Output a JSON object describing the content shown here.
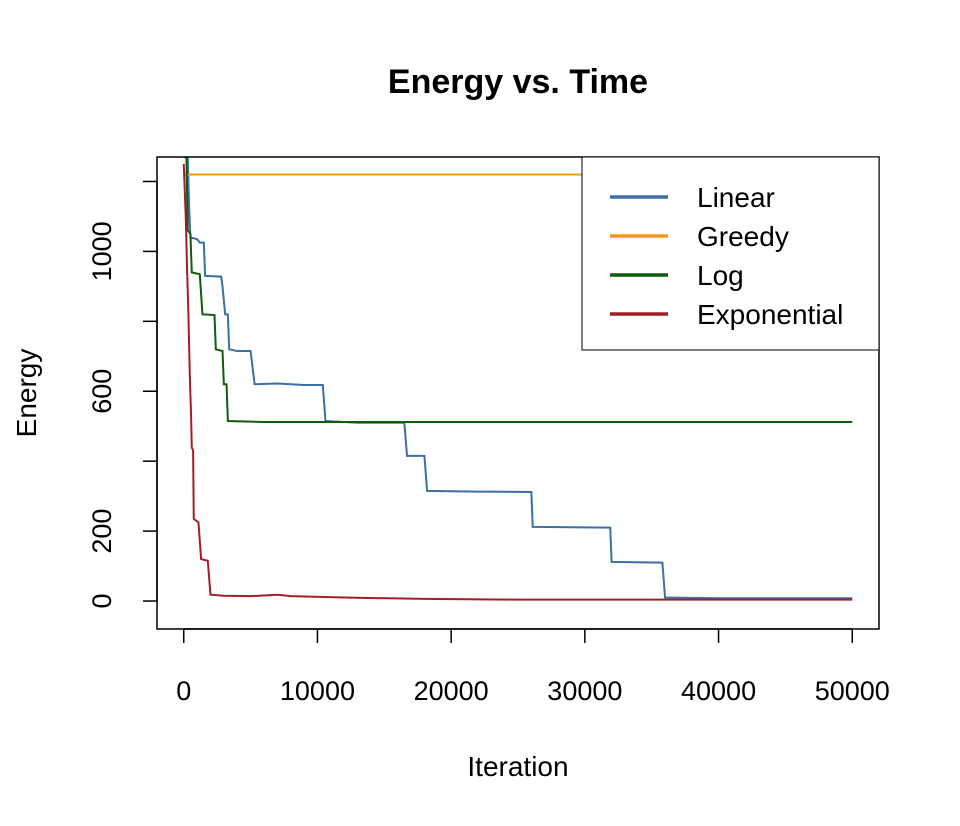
{
  "chart_data": {
    "type": "line",
    "title": "Energy vs. Time",
    "xlabel": "Iteration",
    "ylabel": "Energy",
    "xlim": [
      -2000,
      52000
    ],
    "ylim": [
      -80,
      1270
    ],
    "x_ticks": [
      0,
      10000,
      20000,
      30000,
      40000,
      50000
    ],
    "y_ticks": [
      0,
      200,
      400,
      600,
      800,
      1000,
      1200
    ],
    "y_tick_labels": [
      "0",
      "200",
      "",
      "600",
      "",
      "1000",
      ""
    ],
    "legend_position": "top-right",
    "grid": false,
    "series": [
      {
        "name": "Linear",
        "color": "#3b6fa6",
        "points": [
          [
            0,
            1270
          ],
          [
            300,
            1270
          ],
          [
            400,
            1130
          ],
          [
            500,
            1040
          ],
          [
            1000,
            1035
          ],
          [
            1200,
            1025
          ],
          [
            1500,
            1025
          ],
          [
            1600,
            930
          ],
          [
            2800,
            928
          ],
          [
            2900,
            900
          ],
          [
            3100,
            820
          ],
          [
            3300,
            820
          ],
          [
            3400,
            720
          ],
          [
            4000,
            715
          ],
          [
            5000,
            715
          ],
          [
            5300,
            620
          ],
          [
            7000,
            622
          ],
          [
            9000,
            618
          ],
          [
            10400,
            618
          ],
          [
            10600,
            515
          ],
          [
            13000,
            510
          ],
          [
            16500,
            510
          ],
          [
            16700,
            415
          ],
          [
            18000,
            415
          ],
          [
            18200,
            315
          ],
          [
            22000,
            313
          ],
          [
            26000,
            312
          ],
          [
            26100,
            212
          ],
          [
            31900,
            210
          ],
          [
            32000,
            112
          ],
          [
            35800,
            110
          ],
          [
            36000,
            10
          ],
          [
            40000,
            8
          ],
          [
            50000,
            8
          ]
        ]
      },
      {
        "name": "Greedy",
        "color": "#f7951e",
        "points": [
          [
            0,
            1220
          ],
          [
            30000,
            1220
          ]
        ]
      },
      {
        "name": "Log",
        "color": "#0e5a0e",
        "points": [
          [
            0,
            1270
          ],
          [
            200,
            1270
          ],
          [
            300,
            1060
          ],
          [
            500,
            1050
          ],
          [
            600,
            940
          ],
          [
            1200,
            935
          ],
          [
            1400,
            820
          ],
          [
            2300,
            818
          ],
          [
            2400,
            720
          ],
          [
            2900,
            715
          ],
          [
            3000,
            620
          ],
          [
            3200,
            620
          ],
          [
            3300,
            515
          ],
          [
            6000,
            512
          ],
          [
            50000,
            512
          ]
        ]
      },
      {
        "name": "Exponential",
        "color": "#a51d24",
        "points": [
          [
            0,
            1250
          ],
          [
            150,
            1100
          ],
          [
            250,
            950
          ],
          [
            350,
            820
          ],
          [
            450,
            650
          ],
          [
            550,
            530
          ],
          [
            600,
            440
          ],
          [
            700,
            430
          ],
          [
            750,
            235
          ],
          [
            1100,
            225
          ],
          [
            1300,
            120
          ],
          [
            1800,
            115
          ],
          [
            2000,
            18
          ],
          [
            3000,
            15
          ],
          [
            5000,
            14
          ],
          [
            7000,
            18
          ],
          [
            8000,
            14
          ],
          [
            12000,
            10
          ],
          [
            18000,
            6
          ],
          [
            25000,
            4
          ],
          [
            35000,
            4
          ],
          [
            50000,
            4
          ]
        ]
      }
    ]
  }
}
